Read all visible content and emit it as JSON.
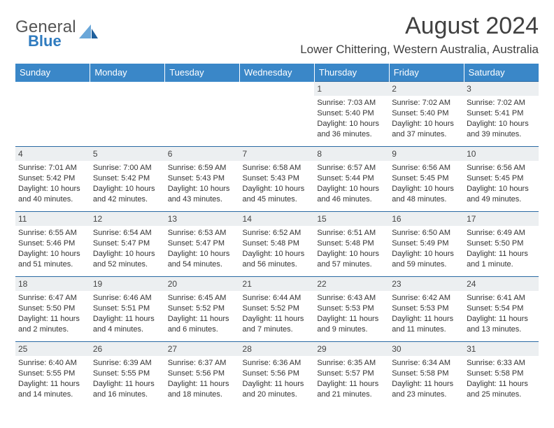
{
  "brand": {
    "line1": "General",
    "line2": "Blue"
  },
  "title": {
    "month": "August 2024",
    "location": "Lower Chittering, Western Australia, Australia"
  },
  "colors": {
    "header_bar": "#3a87c8",
    "header_text": "#ffffff",
    "daynum_bg": "#eceff1",
    "row_divider": "#2a6aa3",
    "brand_gray": "#555555",
    "brand_blue": "#2f7bbf",
    "sail_light": "#6aa7d9",
    "sail_dark": "#1f5f9c"
  },
  "weekdays": [
    "Sunday",
    "Monday",
    "Tuesday",
    "Wednesday",
    "Thursday",
    "Friday",
    "Saturday"
  ],
  "weeks": [
    [
      {
        "blank": true
      },
      {
        "blank": true
      },
      {
        "blank": true
      },
      {
        "blank": true
      },
      {
        "n": "1",
        "sunrise": "Sunrise: 7:03 AM",
        "sunset": "Sunset: 5:40 PM",
        "d1": "Daylight: 10 hours",
        "d2": "and 36 minutes."
      },
      {
        "n": "2",
        "sunrise": "Sunrise: 7:02 AM",
        "sunset": "Sunset: 5:40 PM",
        "d1": "Daylight: 10 hours",
        "d2": "and 37 minutes."
      },
      {
        "n": "3",
        "sunrise": "Sunrise: 7:02 AM",
        "sunset": "Sunset: 5:41 PM",
        "d1": "Daylight: 10 hours",
        "d2": "and 39 minutes."
      }
    ],
    [
      {
        "n": "4",
        "sunrise": "Sunrise: 7:01 AM",
        "sunset": "Sunset: 5:42 PM",
        "d1": "Daylight: 10 hours",
        "d2": "and 40 minutes."
      },
      {
        "n": "5",
        "sunrise": "Sunrise: 7:00 AM",
        "sunset": "Sunset: 5:42 PM",
        "d1": "Daylight: 10 hours",
        "d2": "and 42 minutes."
      },
      {
        "n": "6",
        "sunrise": "Sunrise: 6:59 AM",
        "sunset": "Sunset: 5:43 PM",
        "d1": "Daylight: 10 hours",
        "d2": "and 43 minutes."
      },
      {
        "n": "7",
        "sunrise": "Sunrise: 6:58 AM",
        "sunset": "Sunset: 5:43 PM",
        "d1": "Daylight: 10 hours",
        "d2": "and 45 minutes."
      },
      {
        "n": "8",
        "sunrise": "Sunrise: 6:57 AM",
        "sunset": "Sunset: 5:44 PM",
        "d1": "Daylight: 10 hours",
        "d2": "and 46 minutes."
      },
      {
        "n": "9",
        "sunrise": "Sunrise: 6:56 AM",
        "sunset": "Sunset: 5:45 PM",
        "d1": "Daylight: 10 hours",
        "d2": "and 48 minutes."
      },
      {
        "n": "10",
        "sunrise": "Sunrise: 6:56 AM",
        "sunset": "Sunset: 5:45 PM",
        "d1": "Daylight: 10 hours",
        "d2": "and 49 minutes."
      }
    ],
    [
      {
        "n": "11",
        "sunrise": "Sunrise: 6:55 AM",
        "sunset": "Sunset: 5:46 PM",
        "d1": "Daylight: 10 hours",
        "d2": "and 51 minutes."
      },
      {
        "n": "12",
        "sunrise": "Sunrise: 6:54 AM",
        "sunset": "Sunset: 5:47 PM",
        "d1": "Daylight: 10 hours",
        "d2": "and 52 minutes."
      },
      {
        "n": "13",
        "sunrise": "Sunrise: 6:53 AM",
        "sunset": "Sunset: 5:47 PM",
        "d1": "Daylight: 10 hours",
        "d2": "and 54 minutes."
      },
      {
        "n": "14",
        "sunrise": "Sunrise: 6:52 AM",
        "sunset": "Sunset: 5:48 PM",
        "d1": "Daylight: 10 hours",
        "d2": "and 56 minutes."
      },
      {
        "n": "15",
        "sunrise": "Sunrise: 6:51 AM",
        "sunset": "Sunset: 5:48 PM",
        "d1": "Daylight: 10 hours",
        "d2": "and 57 minutes."
      },
      {
        "n": "16",
        "sunrise": "Sunrise: 6:50 AM",
        "sunset": "Sunset: 5:49 PM",
        "d1": "Daylight: 10 hours",
        "d2": "and 59 minutes."
      },
      {
        "n": "17",
        "sunrise": "Sunrise: 6:49 AM",
        "sunset": "Sunset: 5:50 PM",
        "d1": "Daylight: 11 hours",
        "d2": "and 1 minute."
      }
    ],
    [
      {
        "n": "18",
        "sunrise": "Sunrise: 6:47 AM",
        "sunset": "Sunset: 5:50 PM",
        "d1": "Daylight: 11 hours",
        "d2": "and 2 minutes."
      },
      {
        "n": "19",
        "sunrise": "Sunrise: 6:46 AM",
        "sunset": "Sunset: 5:51 PM",
        "d1": "Daylight: 11 hours",
        "d2": "and 4 minutes."
      },
      {
        "n": "20",
        "sunrise": "Sunrise: 6:45 AM",
        "sunset": "Sunset: 5:52 PM",
        "d1": "Daylight: 11 hours",
        "d2": "and 6 minutes."
      },
      {
        "n": "21",
        "sunrise": "Sunrise: 6:44 AM",
        "sunset": "Sunset: 5:52 PM",
        "d1": "Daylight: 11 hours",
        "d2": "and 7 minutes."
      },
      {
        "n": "22",
        "sunrise": "Sunrise: 6:43 AM",
        "sunset": "Sunset: 5:53 PM",
        "d1": "Daylight: 11 hours",
        "d2": "and 9 minutes."
      },
      {
        "n": "23",
        "sunrise": "Sunrise: 6:42 AM",
        "sunset": "Sunset: 5:53 PM",
        "d1": "Daylight: 11 hours",
        "d2": "and 11 minutes."
      },
      {
        "n": "24",
        "sunrise": "Sunrise: 6:41 AM",
        "sunset": "Sunset: 5:54 PM",
        "d1": "Daylight: 11 hours",
        "d2": "and 13 minutes."
      }
    ],
    [
      {
        "n": "25",
        "sunrise": "Sunrise: 6:40 AM",
        "sunset": "Sunset: 5:55 PM",
        "d1": "Daylight: 11 hours",
        "d2": "and 14 minutes."
      },
      {
        "n": "26",
        "sunrise": "Sunrise: 6:39 AM",
        "sunset": "Sunset: 5:55 PM",
        "d1": "Daylight: 11 hours",
        "d2": "and 16 minutes."
      },
      {
        "n": "27",
        "sunrise": "Sunrise: 6:37 AM",
        "sunset": "Sunset: 5:56 PM",
        "d1": "Daylight: 11 hours",
        "d2": "and 18 minutes."
      },
      {
        "n": "28",
        "sunrise": "Sunrise: 6:36 AM",
        "sunset": "Sunset: 5:56 PM",
        "d1": "Daylight: 11 hours",
        "d2": "and 20 minutes."
      },
      {
        "n": "29",
        "sunrise": "Sunrise: 6:35 AM",
        "sunset": "Sunset: 5:57 PM",
        "d1": "Daylight: 11 hours",
        "d2": "and 21 minutes."
      },
      {
        "n": "30",
        "sunrise": "Sunrise: 6:34 AM",
        "sunset": "Sunset: 5:58 PM",
        "d1": "Daylight: 11 hours",
        "d2": "and 23 minutes."
      },
      {
        "n": "31",
        "sunrise": "Sunrise: 6:33 AM",
        "sunset": "Sunset: 5:58 PM",
        "d1": "Daylight: 11 hours",
        "d2": "and 25 minutes."
      }
    ]
  ]
}
